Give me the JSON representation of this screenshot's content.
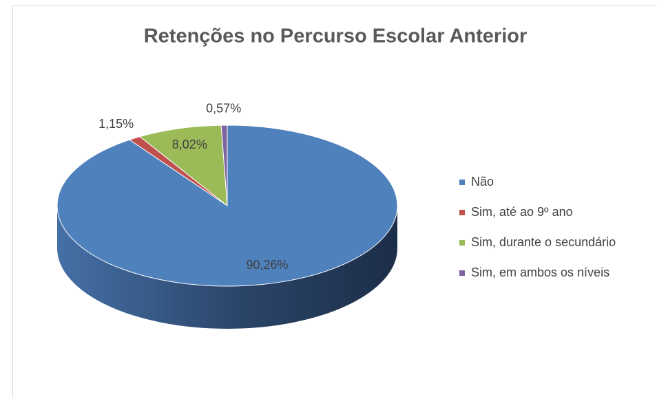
{
  "chart_data": {
    "type": "pie3d",
    "title": "Retenções no Percurso Escolar Anterior",
    "categories": [
      "Não",
      "Sim, até ao 9º ano",
      "Sim, durante o secundário",
      "Sim, em ambos os níveis"
    ],
    "values": [
      90.26,
      1.15,
      8.02,
      0.57
    ],
    "value_labels": [
      "90,26%",
      "1,15%",
      "8,02%",
      "0,57%"
    ],
    "colors": [
      "#4f81bd",
      "#c0504d",
      "#9bbb59",
      "#8064a2"
    ],
    "legend": "right"
  }
}
